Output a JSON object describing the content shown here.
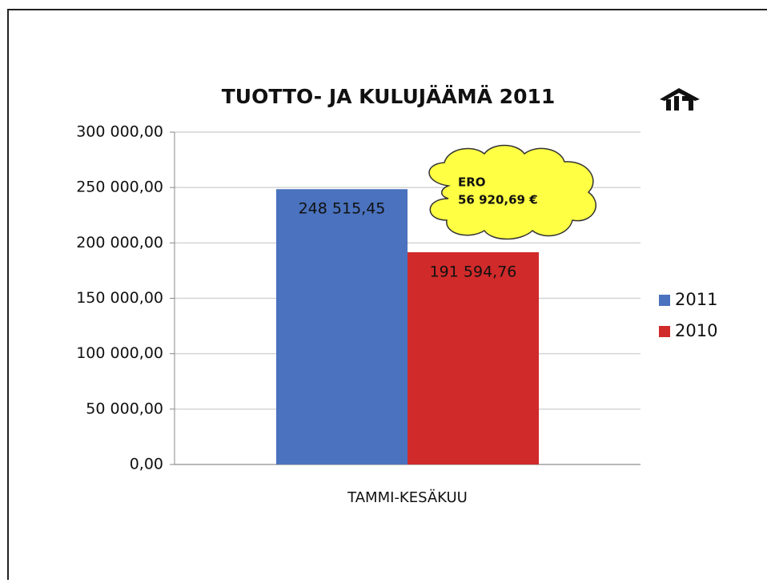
{
  "chart_data": {
    "type": "bar",
    "title": "TUOTTO- JA KULUJÄÄMÄ   2011",
    "categories": [
      "TAMMI-KESÄKUU"
    ],
    "series": [
      {
        "name": "2011",
        "color": "#4a72be",
        "values": [
          248515.45
        ],
        "value_labels": [
          "248 515,45"
        ]
      },
      {
        "name": "2010",
        "color": "#d02a2a",
        "values": [
          191594.76
        ],
        "value_labels": [
          "191 594,76"
        ]
      }
    ],
    "ylim": [
      0,
      300000
    ],
    "yticks": [
      {
        "value": 0,
        "label": "0,00"
      },
      {
        "value": 50000,
        "label": "50 000,00"
      },
      {
        "value": 100000,
        "label": "100 000,00"
      },
      {
        "value": 150000,
        "label": "150 000,00"
      },
      {
        "value": 200000,
        "label": "200 000,00"
      },
      {
        "value": 250000,
        "label": "250 000,00"
      },
      {
        "value": 300000,
        "label": "300 000,00"
      }
    ],
    "grid": true,
    "legend": "right",
    "annotation": [
      "ERO",
      "56 920,69 €"
    ]
  }
}
